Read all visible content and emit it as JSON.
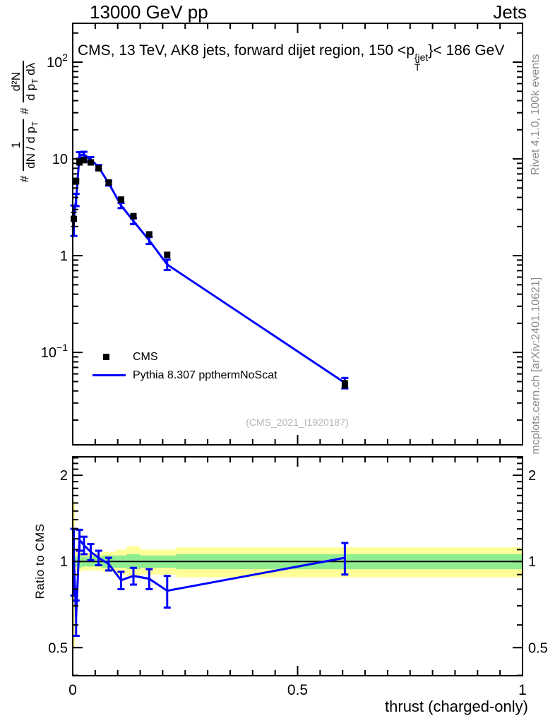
{
  "header": {
    "left": "13000 GeV pp",
    "right": "Jets"
  },
  "title": {
    "pre": "CMS, 13 TeV, AK8 jets, forward dijet region, 150 <p",
    "sup": "{jet",
    "sub": "T",
    "post": "}< 186 GeV"
  },
  "ylabel": {
    "hash1": "#",
    "frac1_num": "1",
    "frac1_den_main": "dN / d p",
    "frac1_den_sub": "T",
    "hash2": "#",
    "frac2_num": "d²N",
    "frac2_den_main": "d p",
    "frac2_den_sub": "T",
    "frac2_den_tail": " dλ"
  },
  "ratio_ylabel": "Ratio to CMS",
  "xlabel": "thrust (charged-only)",
  "legend": {
    "items": [
      {
        "label": "CMS"
      },
      {
        "label": "Pythia 8.307 ppthermNoScat"
      }
    ]
  },
  "watermark": "(CMS_2021_I1920187)",
  "side_notes": {
    "top": "Rivet 4.1.0,  100k events",
    "bottom": "mcplots.cern.ch [arXiv:2401.10621]"
  },
  "colors": {
    "mc_line": "#0000ff",
    "data_marker": "#000000",
    "band_outer": "#ffff99",
    "band_inner": "#90ee90",
    "side_text": "#8a8a8a",
    "watermark": "#b5b5b5",
    "frame": "#000000"
  },
  "chart_data": {
    "type": "line",
    "title": "CMS, 13 TeV, AK8 jets, forward dijet region, 150 < pT(jet) < 186 GeV",
    "xlabel": "thrust (charged-only)",
    "ylabel": "# 1/(dN/dpT) d2N/(dpT dlambda)",
    "legend_position": "left-middle",
    "grid": false,
    "x_range": [
      0,
      1
    ],
    "x": [
      0.0025,
      0.0075,
      0.015,
      0.025,
      0.04,
      0.0575,
      0.08,
      0.1075,
      0.135,
      0.17,
      0.21,
      0.605
    ],
    "main_panel": {
      "ylog": true,
      "ylim": [
        0.0111,
        252
      ],
      "yticks": [
        {
          "v": 100,
          "label": "10^2"
        },
        {
          "v": 10,
          "label": "10"
        },
        {
          "v": 1,
          "label": "1"
        },
        {
          "v": 0.1,
          "label": "10^-1"
        }
      ],
      "series": [
        {
          "name": "CMS",
          "type": "scatter",
          "marker": "square",
          "y": [
            2.4,
            5.9,
            9.2,
            9.7,
            9.2,
            8.0,
            5.7,
            3.8,
            2.56,
            1.66,
            1.02,
            0.047
          ],
          "yerr": [
            0.4,
            0.4,
            0.4,
            0.35,
            0.3,
            0.25,
            0.2,
            0.15,
            0.1,
            0.08,
            0.06,
            0.004
          ]
        },
        {
          "name": "Pythia 8.307 ppthermNoScat",
          "type": "line",
          "y": [
            2.45,
            3.8,
            10.9,
            11.1,
            9.9,
            8.2,
            5.6,
            3.3,
            2.28,
            1.44,
            0.81,
            0.0485
          ],
          "yerr": [
            0.85,
            0.55,
            0.85,
            0.75,
            0.55,
            0.45,
            0.3,
            0.2,
            0.16,
            0.12,
            0.1,
            0.006
          ]
        }
      ]
    },
    "ratio_panel": {
      "ylog": true,
      "ylim": [
        0.399,
        2.32
      ],
      "yticks": [
        {
          "v": 0.5,
          "label": "0.5"
        },
        {
          "v": 1,
          "label": "1"
        },
        {
          "v": 2,
          "label": "2"
        }
      ],
      "yminor": [
        0.4,
        0.6,
        0.7,
        0.8,
        0.9,
        1.1,
        1.2,
        1.3,
        1.4,
        1.5,
        1.6,
        1.7,
        1.8,
        1.9,
        2.1,
        2.2,
        2.3
      ],
      "reference": 1,
      "ratio": [
        1.03,
        0.64,
        1.19,
        1.14,
        1.08,
        1.03,
        0.98,
        0.86,
        0.89,
        0.87,
        0.79,
        1.03
      ],
      "ratio_yerr": [
        0.27,
        0.09,
        0.1,
        0.08,
        0.07,
        0.06,
        0.05,
        0.06,
        0.06,
        0.07,
        0.1,
        0.13
      ],
      "band_edges": [
        0,
        0.005,
        0.01,
        0.02,
        0.03,
        0.05,
        0.065,
        0.095,
        0.12,
        0.15,
        0.19,
        0.23,
        1.0
      ],
      "yellow_lo": [
        0.5,
        0.93,
        0.92,
        0.93,
        0.93,
        0.93,
        0.92,
        0.9,
        0.88,
        0.9,
        0.9,
        0.88
      ],
      "yellow_hi": [
        1.62,
        1.08,
        1.08,
        1.07,
        1.07,
        1.07,
        1.08,
        1.1,
        1.13,
        1.1,
        1.1,
        1.12
      ],
      "green_lo": [
        0.98,
        0.96,
        0.95,
        0.96,
        0.96,
        0.96,
        0.95,
        0.95,
        0.94,
        0.95,
        0.95,
        0.94
      ],
      "green_hi": [
        1.28,
        1.04,
        1.05,
        1.04,
        1.04,
        1.04,
        1.05,
        1.05,
        1.06,
        1.05,
        1.05,
        1.06
      ]
    },
    "xticks": [
      {
        "v": 0,
        "label": "0"
      },
      {
        "v": 0.5,
        "label": "0.5"
      },
      {
        "v": 1,
        "label": "1"
      }
    ],
    "xminor_step": 0.05
  }
}
